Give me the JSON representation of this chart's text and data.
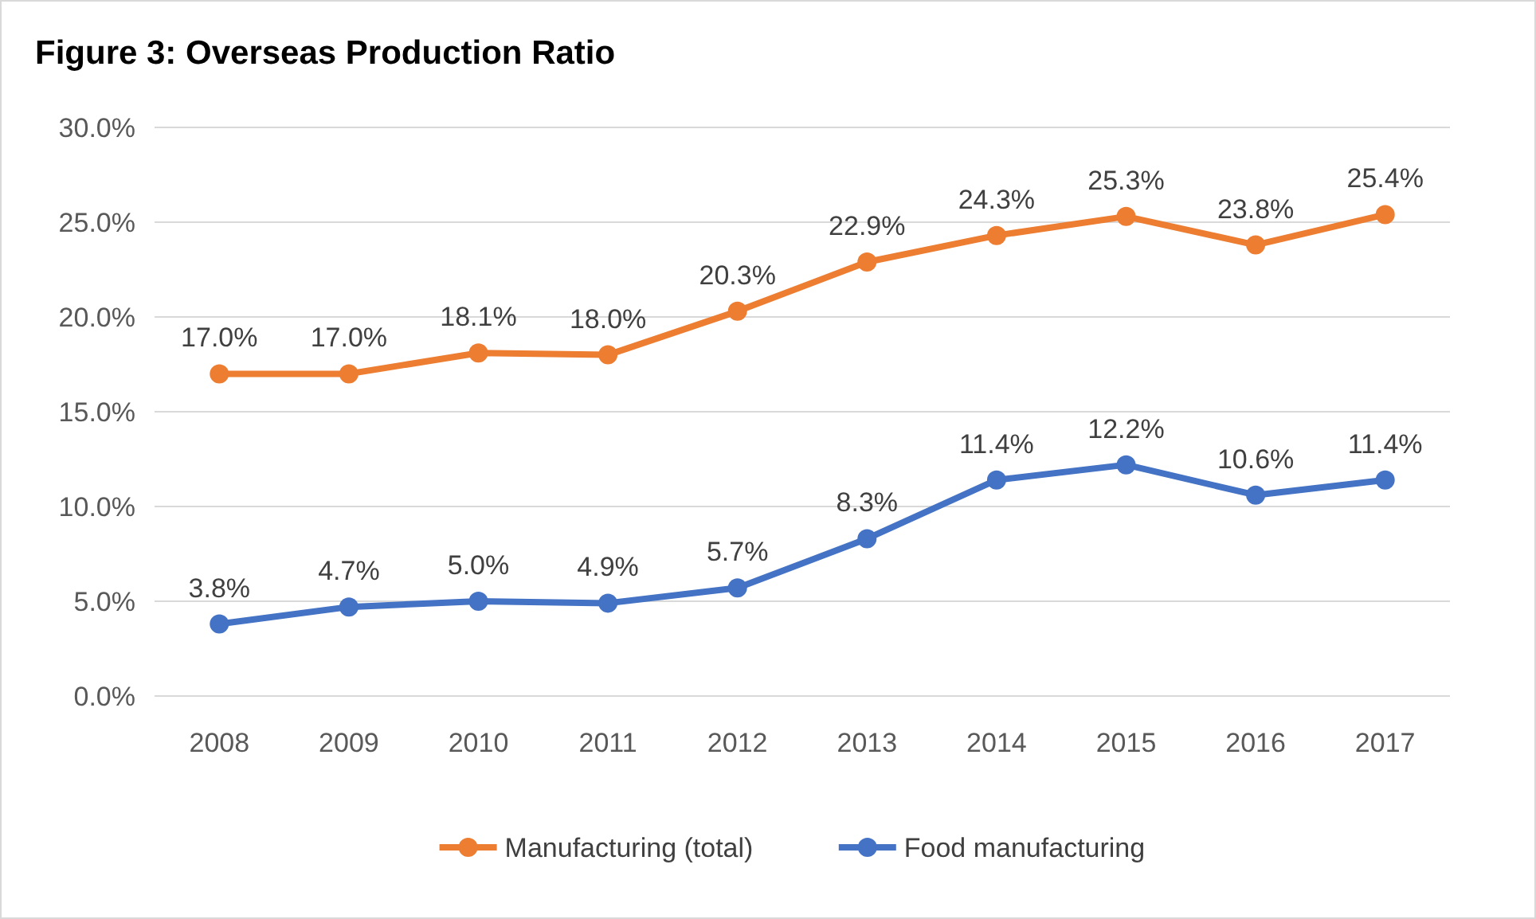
{
  "chart_data": {
    "type": "line",
    "title": "Figure 3: Overseas Production Ratio",
    "categories": [
      "2008",
      "2009",
      "2010",
      "2011",
      "2012",
      "2013",
      "2014",
      "2015",
      "2016",
      "2017"
    ],
    "series": [
      {
        "name": "Manufacturing (total)",
        "color": "#ed7d31",
        "values": [
          17.0,
          17.0,
          18.1,
          18.0,
          20.3,
          22.9,
          24.3,
          25.3,
          23.8,
          25.4
        ],
        "value_labels": [
          "17.0%",
          "17.0%",
          "18.1%",
          "18.0%",
          "20.3%",
          "22.9%",
          "24.3%",
          "25.3%",
          "23.8%",
          "25.4%"
        ]
      },
      {
        "name": "Food manufacturing",
        "color": "#4472c4",
        "values": [
          3.8,
          4.7,
          5.0,
          4.9,
          5.7,
          8.3,
          11.4,
          12.2,
          10.6,
          11.4
        ],
        "value_labels": [
          "3.8%",
          "4.7%",
          "5.0%",
          "4.9%",
          "5.7%",
          "8.3%",
          "11.4%",
          "12.2%",
          "10.6%",
          "11.4%"
        ]
      }
    ],
    "ylim": [
      0,
      30
    ],
    "yticks": [
      {
        "value": 0,
        "label": "0.0%"
      },
      {
        "value": 5,
        "label": "5.0%"
      },
      {
        "value": 10,
        "label": "10.0%"
      },
      {
        "value": 15,
        "label": "15.0%"
      },
      {
        "value": 20,
        "label": "20.0%"
      },
      {
        "value": 25,
        "label": "25.0%"
      },
      {
        "value": 30,
        "label": "30.0%"
      }
    ],
    "grid": "y",
    "legend": "bottom",
    "marker": "circle",
    "line_style": "solid"
  }
}
